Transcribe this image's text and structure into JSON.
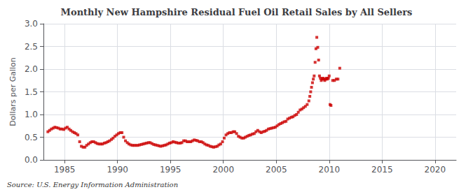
{
  "chart_data": {
    "type": "scatter",
    "title": "Monthly New Hampshire Residual Fuel Oil Retail Sales by All Sellers",
    "ylabel": "Dollars per Gallon",
    "annotation": "Source: U.S. Energy Information Administration",
    "color": "#CC0000",
    "marker": "square",
    "grid": true,
    "xlim": [
      1983,
      2022
    ],
    "ylim": [
      0.0,
      3.0
    ],
    "xticks": [
      1985,
      1990,
      1995,
      2000,
      2005,
      2010,
      2015,
      2020
    ],
    "yticks": [
      {
        "value": 0.0,
        "label": "0.0"
      },
      0.5,
      {
        "value": 1.0,
        "label": "1.0"
      },
      1.5,
      {
        "value": 2.0,
        "label": "2.0"
      },
      2.5,
      {
        "value": 3.0,
        "label": "3.0"
      }
    ],
    "x": [
      1983.42,
      1983.58,
      1983.75,
      1983.92,
      1984.08,
      1984.25,
      1984.42,
      1984.58,
      1984.75,
      1984.92,
      1985.08,
      1985.25,
      1985.42,
      1985.58,
      1985.75,
      1985.92,
      1986.08,
      1986.25,
      1986.42,
      1986.58,
      1986.75,
      1986.92,
      1987.08,
      1987.25,
      1987.42,
      1987.58,
      1987.75,
      1987.92,
      1988.08,
      1988.25,
      1988.42,
      1988.58,
      1988.75,
      1988.92,
      1989.08,
      1989.25,
      1989.42,
      1989.58,
      1989.75,
      1989.92,
      1990.08,
      1990.25,
      1990.42,
      1990.58,
      1990.75,
      1990.92,
      1991.08,
      1991.25,
      1991.42,
      1991.58,
      1991.75,
      1991.92,
      1992.08,
      1992.25,
      1992.42,
      1992.58,
      1992.75,
      1992.92,
      1993.08,
      1993.25,
      1993.42,
      1993.58,
      1993.75,
      1993.92,
      1994.08,
      1994.25,
      1994.42,
      1994.58,
      1994.75,
      1994.92,
      1995.08,
      1995.25,
      1995.42,
      1995.58,
      1995.75,
      1995.92,
      1996.08,
      1996.25,
      1996.42,
      1996.58,
      1996.75,
      1996.92,
      1997.08,
      1997.25,
      1997.42,
      1997.58,
      1997.75,
      1997.92,
      1998.08,
      1998.25,
      1998.42,
      1998.58,
      1998.75,
      1998.92,
      1999.08,
      1999.25,
      1999.42,
      1999.58,
      1999.75,
      1999.92,
      2000.08,
      2000.25,
      2000.42,
      2000.58,
      2000.75,
      2000.92,
      2001.08,
      2001.25,
      2001.42,
      2001.58,
      2001.75,
      2001.92,
      2002.08,
      2002.25,
      2002.42,
      2002.58,
      2002.75,
      2002.92,
      2003.08,
      2003.25,
      2003.42,
      2003.58,
      2003.75,
      2003.92,
      2004.08,
      2004.25,
      2004.42,
      2004.58,
      2004.75,
      2004.92,
      2005.08,
      2005.25,
      2005.42,
      2005.58,
      2005.75,
      2005.92,
      2006.08,
      2006.25,
      2006.42,
      2006.58,
      2006.75,
      2006.92,
      2007.08,
      2007.25,
      2007.42,
      2007.58,
      2007.75,
      2007.92,
      2008.08,
      2008.17,
      2008.25,
      2008.33,
      2008.42,
      2008.5,
      2008.58,
      2008.67,
      2008.75,
      2008.83,
      2008.92,
      2009.0,
      2009.08,
      2009.17,
      2009.25,
      2009.33,
      2009.42,
      2009.5,
      2009.58,
      2009.67,
      2009.75,
      2009.83,
      2009.92,
      2010.0,
      2010.08,
      2010.17,
      2010.33,
      2010.5,
      2010.67,
      2010.83,
      2011.0
    ],
    "values": [
      0.62,
      0.65,
      0.68,
      0.7,
      0.72,
      0.71,
      0.7,
      0.68,
      0.68,
      0.67,
      0.7,
      0.72,
      0.68,
      0.65,
      0.62,
      0.6,
      0.58,
      0.55,
      0.4,
      0.3,
      0.28,
      0.28,
      0.32,
      0.35,
      0.38,
      0.4,
      0.4,
      0.38,
      0.36,
      0.35,
      0.35,
      0.35,
      0.37,
      0.38,
      0.4,
      0.42,
      0.45,
      0.48,
      0.52,
      0.55,
      0.58,
      0.6,
      0.6,
      0.5,
      0.42,
      0.38,
      0.35,
      0.33,
      0.32,
      0.32,
      0.32,
      0.32,
      0.33,
      0.34,
      0.35,
      0.36,
      0.37,
      0.38,
      0.38,
      0.36,
      0.34,
      0.33,
      0.32,
      0.31,
      0.3,
      0.31,
      0.32,
      0.33,
      0.35,
      0.37,
      0.38,
      0.4,
      0.39,
      0.38,
      0.37,
      0.37,
      0.38,
      0.42,
      0.42,
      0.4,
      0.4,
      0.4,
      0.42,
      0.44,
      0.43,
      0.42,
      0.4,
      0.4,
      0.38,
      0.35,
      0.33,
      0.32,
      0.3,
      0.29,
      0.28,
      0.29,
      0.3,
      0.33,
      0.35,
      0.4,
      0.48,
      0.55,
      0.58,
      0.6,
      0.6,
      0.62,
      0.62,
      0.58,
      0.52,
      0.5,
      0.48,
      0.48,
      0.5,
      0.52,
      0.54,
      0.55,
      0.57,
      0.58,
      0.62,
      0.65,
      0.62,
      0.6,
      0.62,
      0.63,
      0.65,
      0.68,
      0.69,
      0.7,
      0.71,
      0.72,
      0.75,
      0.78,
      0.8,
      0.82,
      0.84,
      0.85,
      0.9,
      0.92,
      0.94,
      0.95,
      0.98,
      1.0,
      1.05,
      1.1,
      1.12,
      1.15,
      1.18,
      1.22,
      1.3,
      1.4,
      1.5,
      1.6,
      1.7,
      1.78,
      1.85,
      2.15,
      2.45,
      2.7,
      2.48,
      2.2,
      1.85,
      1.8,
      1.75,
      1.78,
      1.8,
      1.78,
      1.75,
      1.78,
      1.8,
      1.78,
      1.8,
      1.85,
      1.22,
      1.2,
      1.75,
      1.75,
      1.78,
      1.78,
      2.02
    ]
  }
}
